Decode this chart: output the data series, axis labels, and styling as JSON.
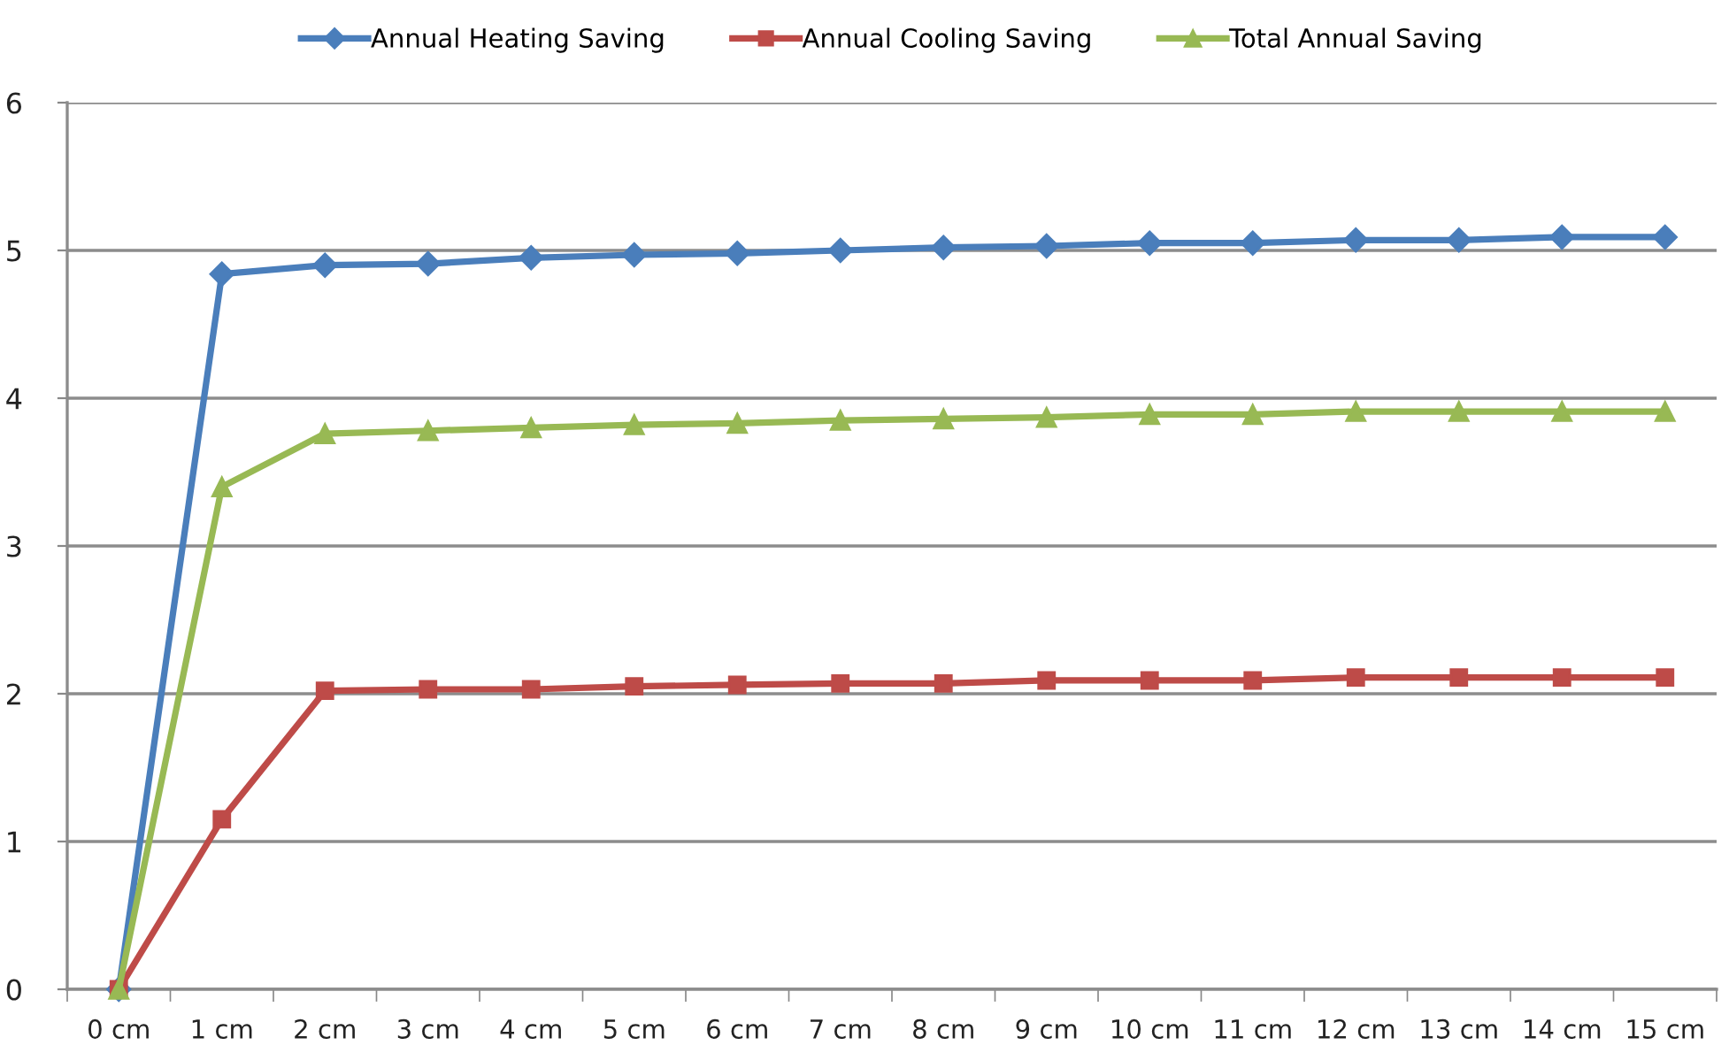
{
  "chart_data": {
    "type": "line",
    "categories": [
      "0 cm",
      "1 cm",
      "2 cm",
      "3 cm",
      "4 cm",
      "5 cm",
      "6 cm",
      "7 cm",
      "8 cm",
      "9 cm",
      "10 cm",
      "11 cm",
      "12 cm",
      "13 cm",
      "14 cm",
      "15 cm"
    ],
    "series": [
      {
        "name": "Annual Heating Saving",
        "color": "#4a7ebb",
        "marker": "diamond",
        "values": [
          0,
          4.84,
          4.9,
          4.91,
          4.95,
          4.97,
          4.98,
          5.0,
          5.02,
          5.03,
          5.05,
          5.05,
          5.07,
          5.07,
          5.09,
          5.09
        ]
      },
      {
        "name": "Annual Cooling Saving",
        "color": "#be4b48",
        "marker": "square",
        "values": [
          0,
          1.15,
          2.02,
          2.03,
          2.03,
          2.05,
          2.06,
          2.07,
          2.07,
          2.09,
          2.09,
          2.09,
          2.11,
          2.11,
          2.11,
          2.11
        ]
      },
      {
        "name": "Total Annual Saving",
        "color": "#98b954",
        "marker": "triangle",
        "values": [
          0,
          3.4,
          3.76,
          3.78,
          3.8,
          3.82,
          3.83,
          3.85,
          3.86,
          3.87,
          3.89,
          3.89,
          3.91,
          3.91,
          3.91,
          3.91
        ]
      }
    ],
    "ylim": [
      0,
      6
    ],
    "yticks": [
      0,
      1,
      2,
      3,
      4,
      5,
      6
    ],
    "grid": "y",
    "legend": "top",
    "line_style": "solid"
  }
}
